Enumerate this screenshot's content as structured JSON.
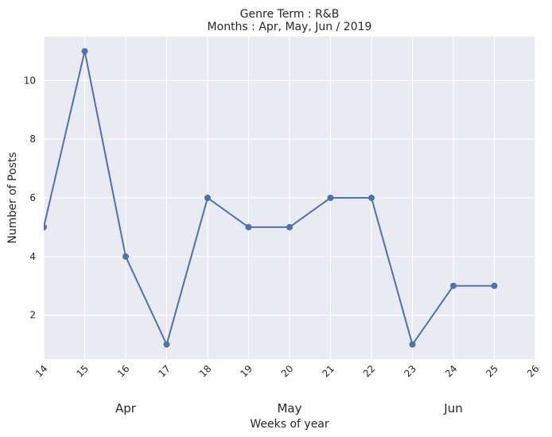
{
  "chart_data": {
    "type": "line",
    "title": "Genre Term : R&B",
    "subtitle": "Months : Apr, May, Jun / 2019",
    "xlabel": "Weeks of year",
    "ylabel": "Number of Posts",
    "x_ticks": [
      "14",
      "15",
      "16",
      "17",
      "18",
      "19",
      "20",
      "21",
      "22",
      "23",
      "24",
      "25",
      "26"
    ],
    "y_ticks": [
      "2",
      "4",
      "6",
      "8",
      "10"
    ],
    "xlim": [
      14,
      26
    ],
    "ylim": [
      0.5,
      11.5
    ],
    "grid": true,
    "month_labels": [
      {
        "label": "Apr",
        "week": 16
      },
      {
        "label": "May",
        "week": 20
      },
      {
        "label": "Jun",
        "week": 24
      }
    ],
    "series": [
      {
        "x": [
          14,
          15,
          16,
          17,
          18,
          19,
          20,
          21,
          22,
          23,
          24,
          25
        ],
        "values": [
          5,
          11,
          4,
          1,
          6,
          5,
          5,
          6,
          6,
          1,
          3,
          3
        ],
        "color": "#4c72b0"
      }
    ]
  },
  "colors": {
    "plot_background": "#eaeaf2",
    "grid": "#ffffff",
    "line": "#4c72b0",
    "text": "#262626"
  }
}
